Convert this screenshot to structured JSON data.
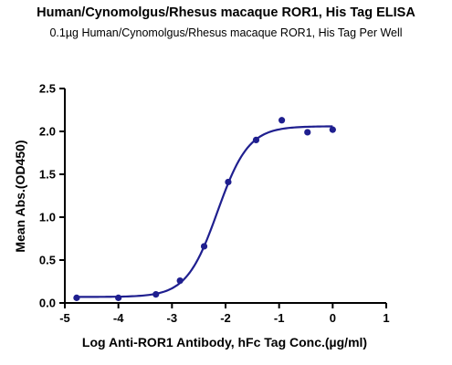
{
  "chart_data": {
    "type": "scatter",
    "title": "Human/Cynomolgus/Rhesus macaque ROR1, His Tag ELISA",
    "subtitle": "0.1µg Human/Cynomolgus/Rhesus macaque ROR1, His Tag Per Well",
    "xlabel": "Log Anti-ROR1 Antibody, hFc Tag Conc.(µg/ml)",
    "ylabel": "Mean Abs.(OD450)",
    "xlim": [
      -5,
      1
    ],
    "ylim": [
      0,
      2.5
    ],
    "x_ticks": [
      "-5",
      "-4",
      "-3",
      "-2",
      "-1",
      "0",
      "1"
    ],
    "y_ticks": [
      "0.0",
      "0.5",
      "1.0",
      "1.5",
      "2.0",
      "2.5"
    ],
    "grid": false,
    "color": "#1f1f8f",
    "points": [
      {
        "x": -4.78,
        "y": 0.06
      },
      {
        "x": -4.0,
        "y": 0.06
      },
      {
        "x": -3.3,
        "y": 0.1
      },
      {
        "x": -2.85,
        "y": 0.26
      },
      {
        "x": -2.4,
        "y": 0.66
      },
      {
        "x": -1.95,
        "y": 1.41
      },
      {
        "x": -1.43,
        "y": 1.9
      },
      {
        "x": -0.95,
        "y": 2.13
      },
      {
        "x": -0.47,
        "y": 1.99
      },
      {
        "x": 0.0,
        "y": 2.02
      }
    ],
    "fit_curve": {
      "type": "4PL",
      "bottom": 0.07,
      "top": 2.06,
      "log_ec50": -2.15,
      "hill_slope": 1.5,
      "x_range": [
        -4.78,
        0.0
      ]
    }
  }
}
